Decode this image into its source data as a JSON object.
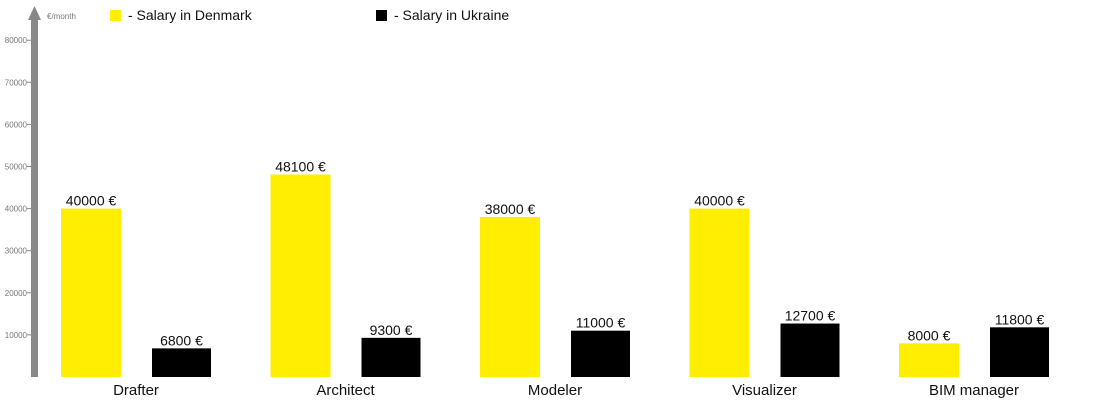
{
  "chart_data": {
    "type": "bar",
    "unit_label": "€/month",
    "categories": [
      "Drafter",
      "Architect",
      "Modeler",
      "Visualizer",
      "BIM manager"
    ],
    "series": [
      {
        "name": "- Salary in Denmark",
        "color": "#ffee00",
        "values": [
          40000,
          48100,
          38000,
          40000,
          8000
        ],
        "labels": [
          "40000 €",
          "48100 €",
          "38000 €",
          "40000 €",
          "8000 €"
        ]
      },
      {
        "name": "- Salary in Ukraine",
        "color": "#000000",
        "values": [
          6800,
          9300,
          11000,
          12700,
          11800
        ],
        "labels": [
          "6800 €",
          "9300 €",
          "11000 €",
          "12700 €",
          "11800 €"
        ]
      }
    ],
    "y_ticks": [
      10000,
      20000,
      30000,
      40000,
      50000,
      60000,
      70000,
      80000
    ],
    "ylim": [
      0,
      80000
    ],
    "axis_color": "#888888",
    "legend_position": "top",
    "grid": false
  }
}
